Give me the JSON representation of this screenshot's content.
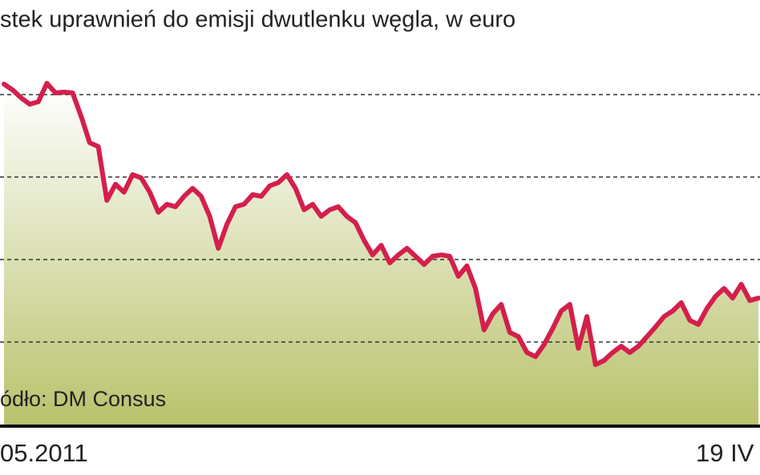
{
  "chart_data": {
    "type": "line",
    "title": "stek uprawnień do emisji dwutlenku węgla, w euro",
    "source": "ódło: DM Consus",
    "categories": [
      "05.2011",
      null,
      null,
      null,
      null,
      null,
      null,
      null,
      null,
      null,
      null,
      null,
      null,
      null,
      null,
      null,
      null,
      null,
      null,
      null,
      null,
      null,
      null,
      null,
      null,
      null,
      null,
      null,
      null,
      null,
      null,
      null,
      null,
      null,
      null,
      null,
      null,
      null,
      null,
      null,
      null,
      null,
      null,
      null,
      null,
      null,
      null,
      null,
      null,
      null,
      null,
      null,
      null,
      null,
      null,
      null,
      null,
      null,
      null,
      null,
      null,
      null,
      null,
      null,
      null,
      null,
      null,
      null,
      null,
      null,
      null,
      null,
      null,
      null,
      null,
      null,
      null,
      null,
      null,
      null,
      null,
      null,
      null,
      null,
      null,
      null,
      null,
      null,
      "19 IV"
    ],
    "series": [
      {
        "color": "#d41f4c",
        "values": [
          16.38,
          16.17,
          15.88,
          15.65,
          15.74,
          16.41,
          16.06,
          16.09,
          16.06,
          15.21,
          14.25,
          14.11,
          12.15,
          12.74,
          12.45,
          13.09,
          12.97,
          12.45,
          11.72,
          12.01,
          11.92,
          12.3,
          12.59,
          12.3,
          11.57,
          10.41,
          11.28,
          11.92,
          12.01,
          12.36,
          12.3,
          12.68,
          12.8,
          13.09,
          12.59,
          11.81,
          12.01,
          11.57,
          11.81,
          11.92,
          11.57,
          11.34,
          10.7,
          10.17,
          10.52,
          9.88,
          10.17,
          10.41,
          10.12,
          9.82,
          10.12,
          10.17,
          10.12,
          9.39,
          9.77,
          8.95,
          7.44,
          8.02,
          8.37,
          7.35,
          7.2,
          6.62,
          6.47,
          6.91,
          7.49,
          8.13,
          8.37,
          6.77,
          7.93,
          6.18,
          6.33,
          6.62,
          6.85,
          6.62,
          6.85,
          7.2,
          7.55,
          7.93,
          8.13,
          8.43,
          7.79,
          7.64,
          8.22,
          8.66,
          8.95,
          8.6,
          9.1,
          8.51,
          8.6
        ]
      }
    ],
    "ylim": [
      4,
      19.44
    ],
    "yticks": [
      7,
      10,
      13,
      16
    ],
    "grid": true
  }
}
